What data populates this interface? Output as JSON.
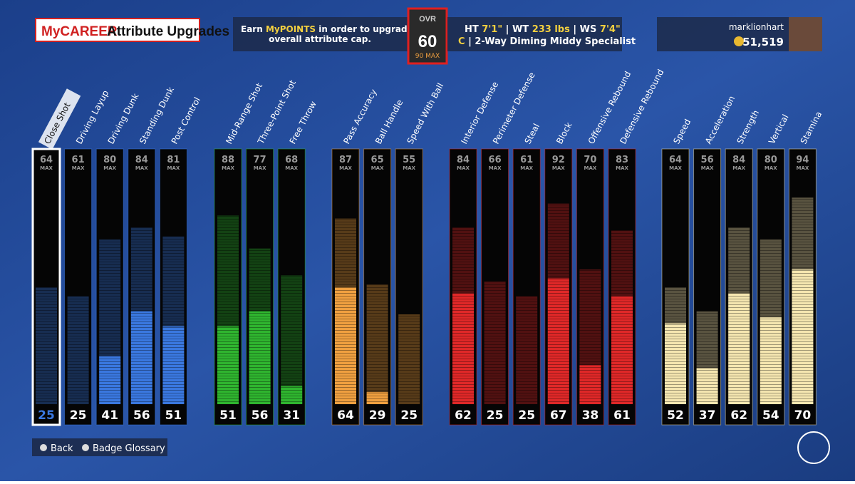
{
  "header": {
    "brand": "MyCAREER",
    "title": "Attribute Upgrades",
    "info": {
      "before": "Earn",
      "highlight": "MyPOINTS",
      "after": "in order to upgrade your",
      "line2": "overall attribute cap."
    },
    "ovr": {
      "label": "OVR",
      "value": "60",
      "max": "90",
      "max_label": "MAX"
    },
    "profile": {
      "ht_label": "HT",
      "ht": "7'1\"",
      "wt_label": "WT",
      "wt": "233 lbs",
      "ws_label": "WS",
      "ws": "7'4\"",
      "position": "C",
      "archetype": "2-Way Diming Middy Specialist"
    },
    "user": {
      "name": "marklionhart",
      "points": "51,519"
    }
  },
  "max_label": "MAX",
  "groups": [
    {
      "color": "#3a78e0",
      "attributes": [
        {
          "name": "Close Shot",
          "max": 64,
          "current": 25
        },
        {
          "name": "Driving Layup",
          "max": 61,
          "current": 25
        },
        {
          "name": "Driving Dunk",
          "max": 80,
          "current": 41
        },
        {
          "name": "Standing Dunk",
          "max": 84,
          "current": 56
        },
        {
          "name": "Post Control",
          "max": 81,
          "current": 51
        }
      ]
    },
    {
      "color": "#2fb52f",
      "attributes": [
        {
          "name": "Mid-Range Shot",
          "max": 88,
          "current": 51
        },
        {
          "name": "Three-Point Shot",
          "max": 77,
          "current": 56
        },
        {
          "name": "Free Throw",
          "max": 68,
          "current": 31
        }
      ]
    },
    {
      "color": "#f0a040",
      "attributes": [
        {
          "name": "Pass Accuracy",
          "max": 87,
          "current": 64
        },
        {
          "name": "Ball Handle",
          "max": 65,
          "current": 29
        },
        {
          "name": "Speed With Ball",
          "max": 55,
          "current": 25
        }
      ]
    },
    {
      "color": "#e02828",
      "attributes": [
        {
          "name": "Interior Defense",
          "max": 84,
          "current": 62
        },
        {
          "name": "Perimeter Defense",
          "max": 66,
          "current": 25
        },
        {
          "name": "Steal",
          "max": 61,
          "current": 25
        },
        {
          "name": "Block",
          "max": 92,
          "current": 67
        },
        {
          "name": "Offensive Rebound",
          "max": 70,
          "current": 38
        },
        {
          "name": "Defensive Rebound",
          "max": 83,
          "current": 61
        }
      ]
    },
    {
      "color": "#f5e6b0",
      "attributes": [
        {
          "name": "Speed",
          "max": 64,
          "current": 52
        },
        {
          "name": "Acceleration",
          "max": 56,
          "current": 37
        },
        {
          "name": "Strength",
          "max": 84,
          "current": 62
        },
        {
          "name": "Vertical",
          "max": 80,
          "current": 54
        },
        {
          "name": "Stamina",
          "max": 94,
          "current": 70
        }
      ]
    }
  ],
  "buttons": {
    "back": "Back",
    "glossary": "Badge Glossary"
  }
}
